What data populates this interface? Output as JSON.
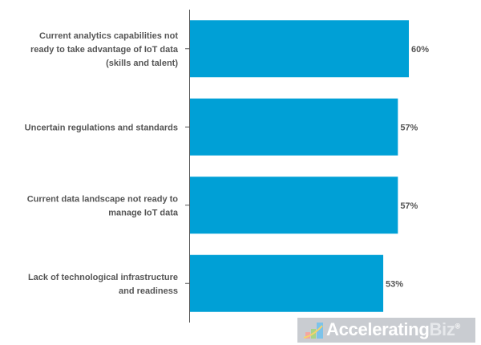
{
  "chart_data": {
    "type": "bar",
    "orientation": "horizontal",
    "categories": [
      [
        "Current analytics capabilities not",
        "ready to take advantage of IoT data",
        "(skills and talent)"
      ],
      [
        "Uncertain regulations and standards"
      ],
      [
        "Current data landscape not ready to",
        "manage IoT data"
      ],
      [
        "Lack of technological infrastructure",
        "and readiness"
      ]
    ],
    "values": [
      60,
      57,
      57,
      53
    ],
    "value_labels": [
      "60%",
      "57%",
      "57%",
      "53%"
    ],
    "bar_color": "#00a0d6",
    "title": "",
    "xlabel": "",
    "ylabel": "",
    "xlim": [
      0,
      100
    ],
    "grid": false
  },
  "watermark": {
    "text_a": "Accelerating",
    "text_b": "Biz",
    "reg": "®"
  }
}
